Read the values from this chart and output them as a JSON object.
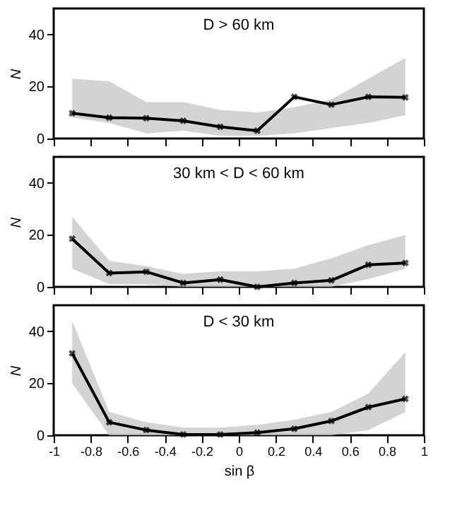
{
  "chart_data": [
    {
      "type": "line",
      "annotations": [
        "D > 60 km"
      ],
      "ylabel": "N",
      "x": [
        -0.9,
        -0.7,
        -0.5,
        -0.3,
        -0.1,
        0.1,
        0.3,
        0.5,
        0.7,
        0.9
      ],
      "xlim": [
        -1,
        1
      ],
      "xticks": [
        -1,
        -0.8,
        -0.6,
        -0.4,
        -0.2,
        0,
        0.2,
        0.4,
        0.6,
        0.8,
        1
      ],
      "ylim": [
        0,
        50
      ],
      "yticks": [
        0,
        20,
        40
      ],
      "tick_labels": "y",
      "grid": false,
      "marker": "cross",
      "line_style": "solid",
      "series": [
        {
          "color": "#000000",
          "values": [
            9.7,
            8,
            7.8,
            6.8,
            4.5,
            3,
            16,
            13,
            16,
            15.8
          ],
          "lower": [
            8,
            6,
            2,
            3,
            1,
            1,
            2,
            4,
            6,
            9
          ],
          "upper": [
            23,
            22,
            14,
            14,
            11,
            10,
            12,
            15,
            23,
            31
          ]
        }
      ]
    },
    {
      "type": "line",
      "annotations": [
        "30 km < D < 60 km"
      ],
      "ylabel": "N",
      "x": [
        -0.9,
        -0.7,
        -0.5,
        -0.3,
        -0.1,
        0.1,
        0.3,
        0.5,
        0.7,
        0.9
      ],
      "xlim": [
        -1,
        1
      ],
      "xticks": [
        -1,
        -0.8,
        -0.6,
        -0.4,
        -0.2,
        0,
        0.2,
        0.4,
        0.6,
        0.8,
        1
      ],
      "ylim": [
        0,
        50
      ],
      "yticks": [
        0,
        20,
        40
      ],
      "tick_labels": "y",
      "grid": false,
      "marker": "cross",
      "line_style": "solid",
      "series": [
        {
          "color": "#000000",
          "values": [
            18.5,
            5.3,
            5.8,
            1.5,
            2.8,
            0,
            1.5,
            2.5,
            8.5,
            9.2
          ],
          "lower": [
            7,
            1,
            1,
            0,
            0,
            0,
            0,
            0,
            3,
            7
          ],
          "upper": [
            27,
            10,
            8,
            5,
            6,
            6,
            7,
            11,
            16,
            20
          ]
        }
      ]
    },
    {
      "type": "line",
      "annotations": [
        "D < 30 km"
      ],
      "ylabel": "N",
      "xlabel": "sin β",
      "x": [
        -0.9,
        -0.7,
        -0.5,
        -0.3,
        -0.1,
        0.1,
        0.3,
        0.5,
        0.7,
        0.9
      ],
      "xlim": [
        -1,
        1
      ],
      "xticks": [
        -1,
        -0.8,
        -0.6,
        -0.4,
        -0.2,
        0,
        0.2,
        0.4,
        0.6,
        0.8,
        1
      ],
      "ylim": [
        0,
        50
      ],
      "yticks": [
        0,
        20,
        40
      ],
      "grid": false,
      "marker": "cross",
      "line_style": "solid",
      "series": [
        {
          "color": "#000000",
          "values": [
            31.5,
            5,
            2,
            0.3,
            0.3,
            1,
            2.5,
            5.5,
            10.8,
            14
          ],
          "lower": [
            20,
            0,
            0,
            0,
            0,
            0,
            0,
            0,
            2,
            9
          ],
          "upper": [
            44,
            9,
            5,
            3,
            3,
            4,
            6,
            9,
            16,
            32
          ]
        }
      ]
    }
  ]
}
